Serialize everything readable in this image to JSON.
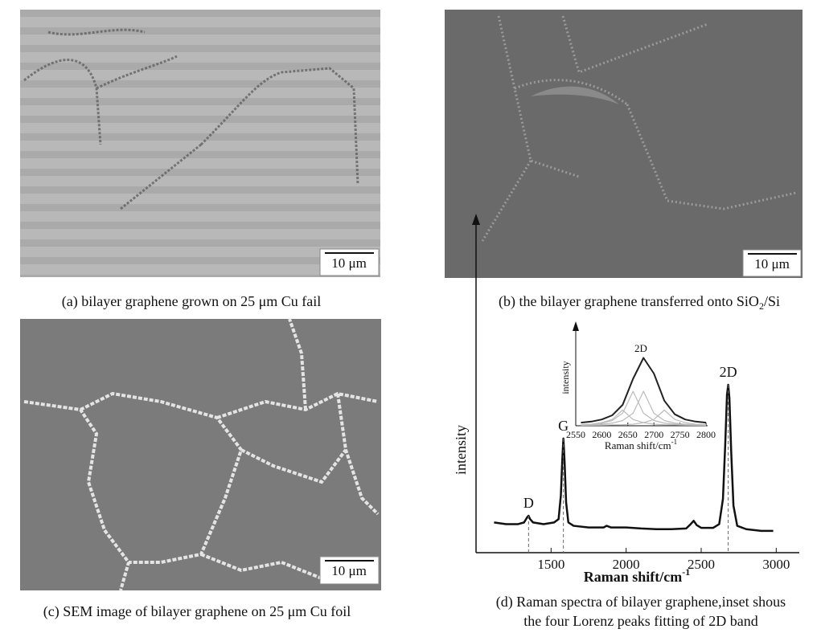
{
  "panels": [
    {
      "caption": [
        "(a) bilayer graphene grown on 25 μm Cu fail"
      ],
      "scale_bar": "10 μm"
    },
    {
      "caption": [
        "(b) the bilayer graphene transferred onto SiO",
        "2",
        "/Si"
      ],
      "scale_bar": "10 μm"
    },
    {
      "caption": [
        "(c) SEM image of bilayer graphene on 25 μm Cu foil"
      ],
      "scale_bar": "10 μm"
    }
  ],
  "chart_data": {
    "type": "line",
    "caption": [
      "(d) Raman spectra of bilayer graphene,inset shous",
      "the four Lorenz peaks fitting of 2D band"
    ],
    "x_label": [
      "Raman shift/cm",
      "-1"
    ],
    "y_label": "intensity",
    "xlim": [
      1000,
      3100
    ],
    "xticks": [
      1500,
      2000,
      2500,
      3000
    ],
    "ylim": [
      0,
      1
    ],
    "x": [
      1120,
      1200,
      1280,
      1320,
      1340,
      1350,
      1360,
      1380,
      1450,
      1520,
      1550,
      1565,
      1575,
      1582,
      1590,
      1600,
      1615,
      1650,
      1750,
      1850,
      1870,
      1900,
      2000,
      2100,
      2200,
      2300,
      2400,
      2430,
      2450,
      2470,
      2500,
      2580,
      2620,
      2645,
      2660,
      2672,
      2680,
      2688,
      2700,
      2715,
      2740,
      2800,
      2900,
      2980
    ],
    "series": [
      {
        "color": "#111111",
        "values": [
          0.09,
          0.085,
          0.085,
          0.09,
          0.105,
          0.11,
          0.1,
          0.09,
          0.085,
          0.09,
          0.1,
          0.17,
          0.28,
          0.34,
          0.27,
          0.15,
          0.09,
          0.08,
          0.075,
          0.075,
          0.08,
          0.075,
          0.075,
          0.072,
          0.07,
          0.07,
          0.072,
          0.085,
          0.095,
          0.082,
          0.074,
          0.074,
          0.085,
          0.16,
          0.32,
          0.47,
          0.5,
          0.46,
          0.3,
          0.14,
          0.08,
          0.07,
          0.065,
          0.065
        ]
      }
    ],
    "annotations": [
      {
        "text": "D",
        "x": 1350
      },
      {
        "text": "G",
        "x": 1582
      },
      {
        "text": "2D",
        "x": 2680
      }
    ],
    "inset": {
      "type": "line",
      "title": "2D",
      "x_label": [
        "Raman shift/cm",
        "-1"
      ],
      "y_label": "intensity",
      "xlim": [
        2550,
        2800
      ],
      "xticks": [
        2550,
        2600,
        2650,
        2700,
        2750,
        2800
      ],
      "ylim": [
        0,
        1
      ],
      "x": [
        2560,
        2580,
        2600,
        2620,
        2640,
        2660,
        2680,
        2700,
        2720,
        2740,
        2760,
        2780,
        2800
      ],
      "series": [
        {
          "color": "#222222",
          "values": [
            0.03,
            0.04,
            0.06,
            0.1,
            0.2,
            0.45,
            0.65,
            0.5,
            0.24,
            0.11,
            0.06,
            0.04,
            0.03
          ]
        },
        {
          "color": "#bbbbbb",
          "values": [
            0.01,
            0.015,
            0.025,
            0.05,
            0.12,
            0.33,
            0.12,
            0.05,
            0.025,
            0.015,
            0.01,
            0.008,
            0.006
          ]
        },
        {
          "color": "#bbbbbb",
          "values": [
            0.008,
            0.01,
            0.015,
            0.025,
            0.05,
            0.12,
            0.33,
            0.12,
            0.05,
            0.025,
            0.015,
            0.01,
            0.008
          ]
        },
        {
          "color": "#bbbbbb",
          "values": [
            0.01,
            0.015,
            0.03,
            0.06,
            0.15,
            0.06,
            0.03,
            0.015,
            0.01,
            0.008,
            0.006,
            0.005,
            0.004
          ]
        },
        {
          "color": "#bbbbbb",
          "values": [
            0.004,
            0.005,
            0.006,
            0.008,
            0.01,
            0.015,
            0.03,
            0.06,
            0.15,
            0.06,
            0.03,
            0.015,
            0.01
          ]
        }
      ]
    }
  }
}
